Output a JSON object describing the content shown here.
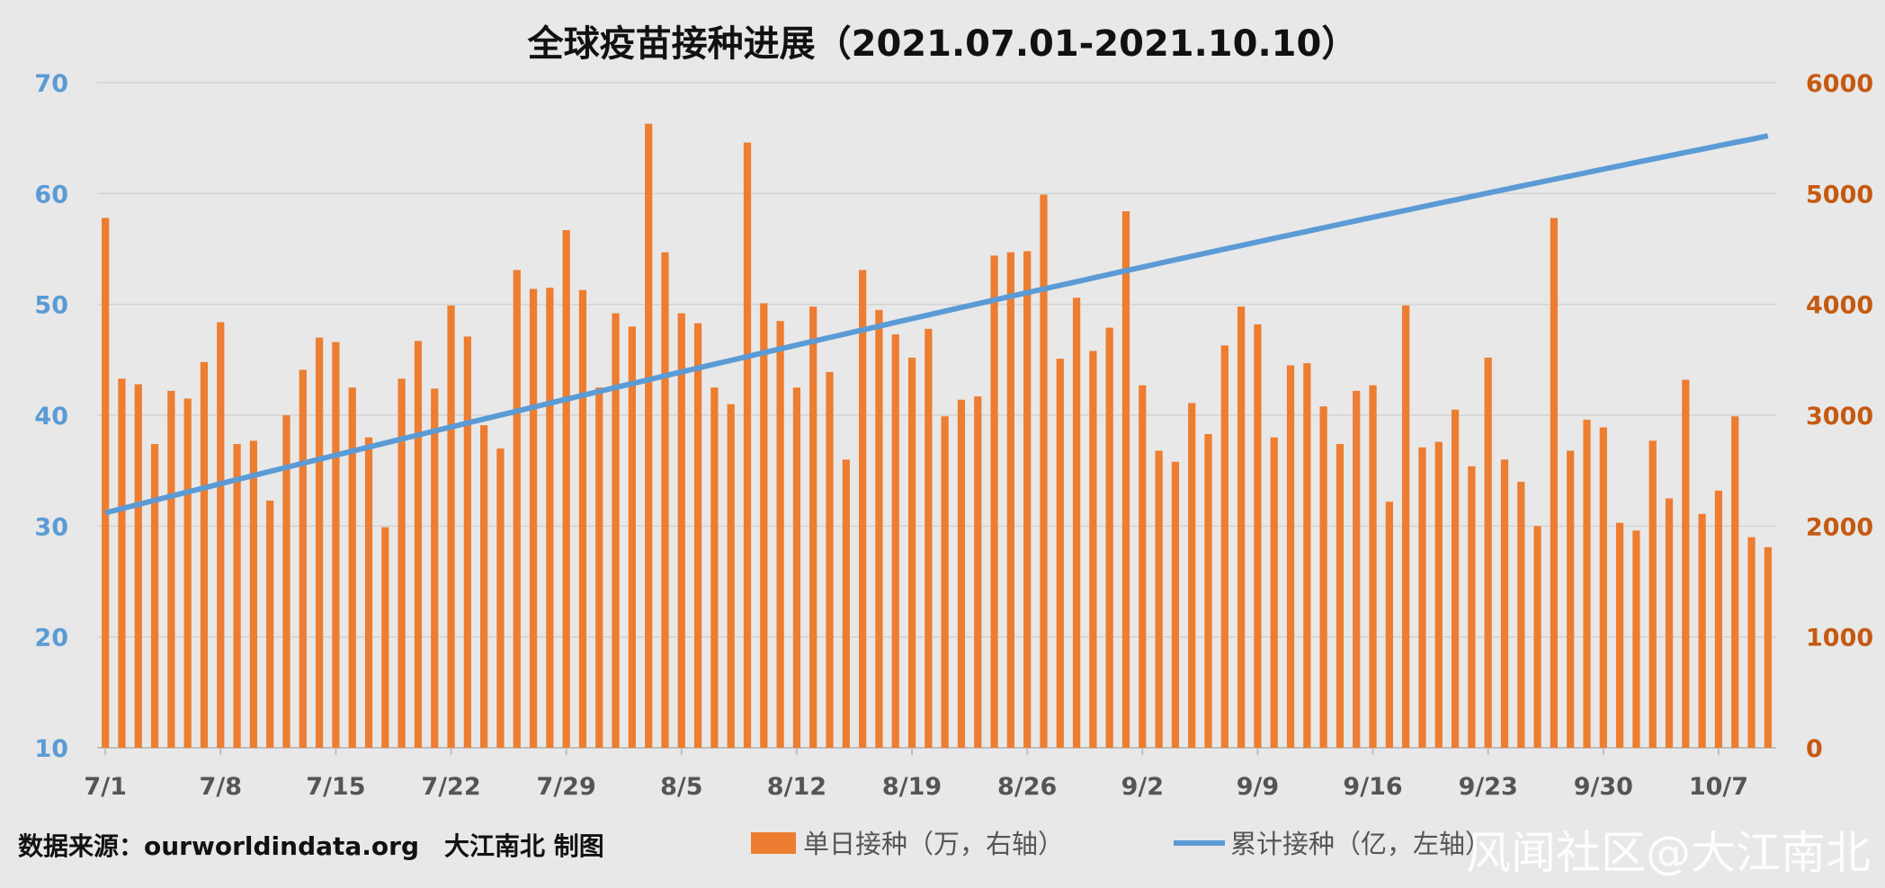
{
  "chart_data": {
    "type": "bar",
    "title": "全球疫苗接种进展（2021.07.01-2021.10.10）",
    "x_tick_labels": [
      "7/1",
      "7/8",
      "7/15",
      "7/22",
      "7/29",
      "8/5",
      "8/12",
      "8/19",
      "8/26",
      "9/2",
      "9/9",
      "9/16",
      "9/23",
      "9/30",
      "10/7"
    ],
    "y_left": {
      "min": 10,
      "max": 70,
      "ticks": [
        "10",
        "20",
        "30",
        "40",
        "50",
        "60",
        "70"
      ],
      "color": "#5b9bd5"
    },
    "y_right": {
      "min": 0,
      "max": 6000,
      "ticks": [
        "0",
        "1000",
        "2000",
        "3000",
        "4000",
        "5000",
        "6000"
      ],
      "color": "#c55a11"
    },
    "grid": true,
    "legend_position": "bottom",
    "series": [
      {
        "name": "单日接种（万，右轴）",
        "kind": "bar",
        "axis": "right",
        "color": "#ed7d31",
        "values": [
          4780,
          3330,
          3280,
          2740,
          3220,
          3150,
          3480,
          3840,
          2740,
          2770,
          2230,
          3000,
          3410,
          3700,
          3660,
          3250,
          2800,
          1990,
          3330,
          3670,
          3240,
          3990,
          3710,
          2910,
          2700,
          4310,
          4140,
          4150,
          4670,
          4130,
          3250,
          3920,
          3800,
          5630,
          4470,
          3920,
          3830,
          3250,
          3100,
          5460,
          4010,
          3850,
          3250,
          3980,
          3390,
          2600,
          4310,
          3950,
          3730,
          3520,
          3780,
          2990,
          3140,
          3170,
          4440,
          4470,
          4480,
          4990,
          3510,
          4060,
          3580,
          3790,
          4840,
          3270,
          2680,
          2580,
          3110,
          2830,
          3630,
          3980,
          3820,
          2800,
          3450,
          3470,
          3080,
          2740,
          3220,
          3270,
          2220,
          3990,
          2710,
          2760,
          3050,
          2540,
          3520,
          2600,
          2400,
          2000,
          4780,
          2680,
          2960,
          2890,
          2030,
          1960,
          2770,
          2250,
          3320,
          2110,
          2320,
          2990,
          1900,
          1810
        ]
      },
      {
        "name": "累计接种（亿，左轴）",
        "kind": "line",
        "axis": "left",
        "color": "#5b9bd5",
        "start": 31.2,
        "end": 65.2
      }
    ]
  },
  "footer": {
    "source": "数据来源：ourworldindata.org　大江南北 制图",
    "watermark": "风闻社区@大江南北"
  }
}
